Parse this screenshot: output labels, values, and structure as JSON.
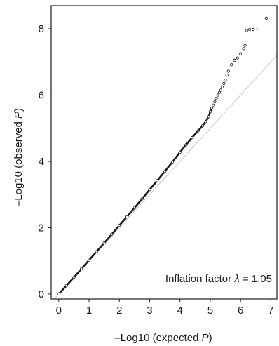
{
  "chart_data": {
    "type": "scatter",
    "xlabel": {
      "pre": "–Log10 (expected ",
      "var": "P",
      "post": ")"
    },
    "ylabel": {
      "pre": "–Log10 (observed ",
      "var": "P",
      "post": ")"
    },
    "xlim": [
      -0.25,
      7.2
    ],
    "ylim": [
      -0.15,
      8.7
    ],
    "x_ticks": [
      "0",
      "1",
      "2",
      "3",
      "4",
      "5",
      "6",
      "7"
    ],
    "y_ticks": [
      "0",
      "2",
      "4",
      "6",
      "8"
    ],
    "grid": false,
    "reference_line": {
      "slope": 1,
      "intercept": 0
    },
    "annotation": {
      "pre": "Inflation factor ",
      "symbol": "λ",
      "post": " = 1.05"
    },
    "colors": {
      "points": "#1a1a1a",
      "reference_line": "#c8c8c8",
      "axis": "#1a1a1a"
    },
    "series": [
      {
        "points": [
          [
            0.0,
            0.0
          ],
          [
            0.25,
            0.25
          ],
          [
            0.5,
            0.5
          ],
          [
            0.75,
            0.76
          ],
          [
            1.0,
            1.02
          ],
          [
            1.25,
            1.28
          ],
          [
            1.5,
            1.54
          ],
          [
            1.75,
            1.8
          ],
          [
            2.0,
            2.07
          ],
          [
            2.25,
            2.33
          ],
          [
            2.5,
            2.6
          ],
          [
            2.75,
            2.87
          ],
          [
            3.0,
            3.15
          ],
          [
            3.25,
            3.42
          ],
          [
            3.5,
            3.7
          ],
          [
            3.75,
            3.98
          ],
          [
            4.0,
            4.28
          ],
          [
            4.2,
            4.5
          ],
          [
            4.4,
            4.72
          ],
          [
            4.6,
            4.92
          ],
          [
            4.75,
            5.08
          ],
          [
            4.85,
            5.2
          ],
          [
            4.95,
            5.35
          ],
          [
            5.0,
            5.5
          ],
          [
            5.05,
            5.6
          ],
          [
            5.1,
            5.7
          ],
          [
            5.15,
            5.8
          ],
          [
            5.2,
            5.9
          ],
          [
            5.25,
            6.0
          ],
          [
            5.3,
            6.08
          ],
          [
            5.35,
            6.15
          ],
          [
            5.4,
            6.25
          ],
          [
            5.45,
            6.35
          ],
          [
            5.5,
            6.45
          ],
          [
            5.55,
            6.6
          ],
          [
            5.6,
            6.72
          ],
          [
            5.65,
            6.82
          ],
          [
            5.7,
            6.92
          ],
          [
            5.8,
            7.05
          ],
          [
            5.9,
            7.12
          ],
          [
            6.0,
            7.25
          ],
          [
            6.1,
            7.4
          ],
          [
            6.15,
            7.5
          ],
          [
            6.2,
            7.95
          ],
          [
            6.3,
            7.98
          ],
          [
            6.42,
            7.98
          ],
          [
            6.57,
            8.02
          ],
          [
            6.85,
            8.32
          ]
        ]
      }
    ]
  }
}
